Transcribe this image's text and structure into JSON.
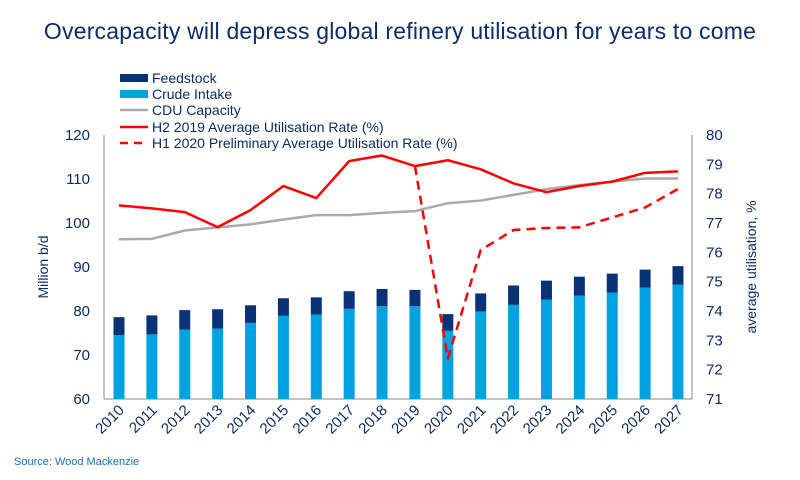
{
  "title": "Overcapacity will depress global refinery utilisation for years to come",
  "source": "Source: Wood Mackenzie",
  "colors": {
    "feedstock": "#0a3377",
    "crude": "#00a3e0",
    "cdu": "#aaaaaa",
    "util": "#ff0000",
    "title": "#0b2d6b"
  },
  "chart_data": {
    "type": "bar",
    "categories": [
      "2010",
      "2011",
      "2012",
      "2013",
      "2014",
      "2015",
      "2016",
      "2017",
      "2018",
      "2019",
      "2020",
      "2021",
      "2022",
      "2023",
      "2024",
      "2025",
      "2026",
      "2027"
    ],
    "ylabel": "Million b/d",
    "y2label": "average utilisation, %",
    "ylim": [
      60,
      120
    ],
    "yticks": [
      60,
      70,
      80,
      90,
      100,
      110,
      120
    ],
    "y2lim": [
      71,
      80
    ],
    "y2ticks": [
      71,
      72,
      73,
      74,
      75,
      76,
      77,
      78,
      79,
      80
    ],
    "grid": false,
    "legend_position": "top-left",
    "series": [
      {
        "name": "Feedstock",
        "type": "stacked-bar",
        "axis": "left",
        "values": [
          4.1,
          4.3,
          4.4,
          4.4,
          4.0,
          4.0,
          3.9,
          4.0,
          3.9,
          3.7,
          3.8,
          4.1,
          4.4,
          4.3,
          4.3,
          4.3,
          4.1,
          4.2
        ]
      },
      {
        "name": "Crude Intake",
        "type": "stacked-bar",
        "axis": "left",
        "values": [
          74.5,
          74.7,
          75.8,
          76.0,
          77.3,
          78.9,
          79.2,
          80.5,
          81.1,
          81.1,
          75.5,
          79.9,
          81.4,
          82.6,
          83.5,
          84.2,
          85.3,
          86.0
        ]
      },
      {
        "name": "CDU Capacity",
        "type": "line",
        "axis": "left",
        "values": [
          96.3,
          96.4,
          98.3,
          99.0,
          99.7,
          100.8,
          101.8,
          101.8,
          102.3,
          102.7,
          104.5,
          105.1,
          106.4,
          107.7,
          108.6,
          109.4,
          110.1,
          110.1
        ]
      },
      {
        "name": "H2 2019 Average Utilisation Rate (%)",
        "type": "line",
        "axis": "right",
        "values": [
          77.6,
          77.5,
          77.37,
          76.86,
          77.44,
          78.26,
          77.85,
          79.11,
          79.3,
          78.94,
          79.14,
          78.83,
          78.35,
          78.05,
          78.26,
          78.41,
          78.71,
          78.76
        ]
      },
      {
        "name": "H1 2020 Preliminary Average Utilisation Rate (%)",
        "type": "dashed-line",
        "axis": "right",
        "values": [
          null,
          null,
          null,
          null,
          null,
          null,
          null,
          null,
          null,
          78.94,
          72.38,
          76.08,
          76.76,
          76.83,
          76.85,
          77.19,
          77.53,
          78.16
        ]
      }
    ]
  }
}
